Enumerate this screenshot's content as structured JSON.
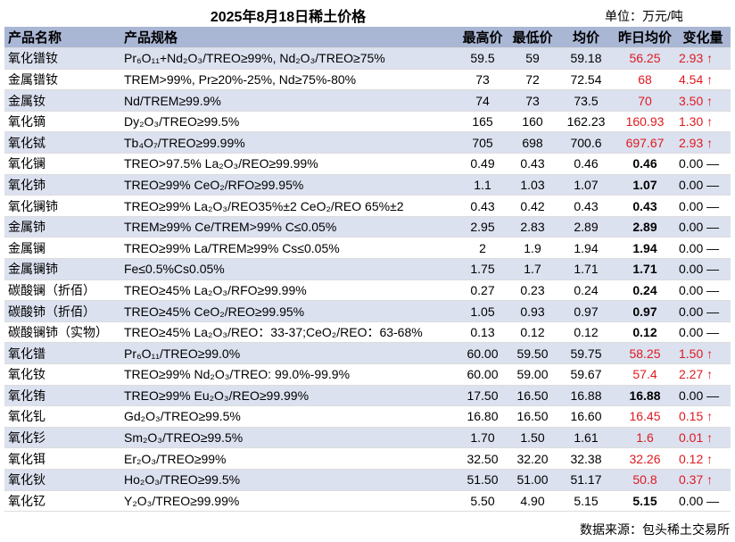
{
  "title": "2025年8月18日稀土价格",
  "unit": "单位：万元/吨",
  "headers": {
    "name": "产品名称",
    "spec": "产品规格",
    "high": "最高价",
    "low": "最低价",
    "avg": "均价",
    "yest": "昨日均价",
    "chg": "变化量"
  },
  "colors": {
    "header_bg": "#a9b6d4",
    "band_bg": "#dbe1ef",
    "up": "#e0191f"
  },
  "rows": [
    {
      "name": "氧化镨钕",
      "spec": "Pr₆O₁₁+Nd₂O₃/TREO≥99%, Nd₂O₃/TREO≥75%",
      "high": "59.5",
      "low": "59",
      "avg": "59.18",
      "yest": "56.25",
      "chg": "2.93 ↑",
      "up": true
    },
    {
      "name": "金属镨钕",
      "spec": "TREM>99%, Pr≥20%-25%, Nd≥75%-80%",
      "high": "73",
      "low": "72",
      "avg": "72.54",
      "yest": "68",
      "chg": "4.54 ↑",
      "up": true
    },
    {
      "name": "金属钕",
      "spec": "Nd/TREM≥99.9%",
      "high": "74",
      "low": "73",
      "avg": "73.5",
      "yest": "70",
      "chg": "3.50 ↑",
      "up": true
    },
    {
      "name": "氧化镝",
      "spec": "Dy₂O₃/TREO≥99.5%",
      "high": "165",
      "low": "160",
      "avg": "162.23",
      "yest": "160.93",
      "chg": "1.30 ↑",
      "up": true
    },
    {
      "name": "氧化铽",
      "spec": "Tb₄O₇/TREO≥99.99%",
      "high": "705",
      "low": "698",
      "avg": "700.6",
      "yest": "697.67",
      "chg": "2.93 ↑",
      "up": true
    },
    {
      "name": "氧化镧",
      "spec": "TREO>97.5% La₂O₃/REO≥99.99%",
      "high": "0.49",
      "low": "0.43",
      "avg": "0.46",
      "yest": "0.46",
      "chg": "0.00 —",
      "up": false
    },
    {
      "name": "氧化铈",
      "spec": "TREO≥99% CeO₂/RFO≥99.95%",
      "high": "1.1",
      "low": "1.03",
      "avg": "1.07",
      "yest": "1.07",
      "chg": "0.00 —",
      "up": false
    },
    {
      "name": "氧化镧铈",
      "spec": "TREO≥99% La₂O₃/REO35%±2 CeO₂/REO 65%±2",
      "high": "0.43",
      "low": "0.42",
      "avg": "0.43",
      "yest": "0.43",
      "chg": "0.00 —",
      "up": false
    },
    {
      "name": "金属铈",
      "spec": "TREM≥99% Ce/TREM>99% C≤0.05%",
      "high": "2.95",
      "low": "2.83",
      "avg": "2.89",
      "yest": "2.89",
      "chg": "0.00 —",
      "up": false
    },
    {
      "name": "金属镧",
      "spec": "TREO≥99% La/TREM≥99% Cs≤0.05%",
      "high": "2",
      "low": "1.9",
      "avg": "1.94",
      "yest": "1.94",
      "chg": "0.00 —",
      "up": false
    },
    {
      "name": "金属镧铈",
      "spec": "Fe≤0.5%Cs0.05%",
      "high": "1.75",
      "low": "1.7",
      "avg": "1.71",
      "yest": "1.71",
      "chg": "0.00 —",
      "up": false
    },
    {
      "name": "碳酸镧（折佰）",
      "spec": "TREO≥45% La₂O₃/RFO≥99.99%",
      "high": "0.27",
      "low": "0.23",
      "avg": "0.24",
      "yest": "0.24",
      "chg": "0.00 —",
      "up": false
    },
    {
      "name": "碳酸铈（折佰）",
      "spec": "TREO≥45% CeO₂/REO≥99.95%",
      "high": "1.05",
      "low": "0.93",
      "avg": "0.97",
      "yest": "0.97",
      "chg": "0.00 —",
      "up": false
    },
    {
      "name": "碳酸镧铈（实物）",
      "spec": "TREO≥45% La₂O₃/REO：33-37;CeO₂/REO：63-68%",
      "high": "0.13",
      "low": "0.12",
      "avg": "0.12",
      "yest": "0.12",
      "chg": "0.00 —",
      "up": false
    },
    {
      "name": "氧化镨",
      "spec": "Pr₆O₁₁/TREO≥99.0%",
      "high": "60.00",
      "low": "59.50",
      "avg": "59.75",
      "yest": "58.25",
      "chg": "1.50 ↑",
      "up": true
    },
    {
      "name": "氧化钕",
      "spec": "TREO≥99% Nd₂O₃/TREO: 99.0%-99.9%",
      "high": "60.00",
      "low": "59.00",
      "avg": "59.67",
      "yest": "57.4",
      "chg": "2.27 ↑",
      "up": true
    },
    {
      "name": "氧化铕",
      "spec": "TREO≥99% Eu₂O₃/REO≥99.99%",
      "high": "17.50",
      "low": "16.50",
      "avg": "16.88",
      "yest": "16.88",
      "chg": "0.00 —",
      "up": false
    },
    {
      "name": "氧化钆",
      "spec": "Gd₂O₃/TREO≥99.5%",
      "high": "16.80",
      "low": "16.50",
      "avg": "16.60",
      "yest": "16.45",
      "chg": "0.15 ↑",
      "up": true
    },
    {
      "name": "氧化钐",
      "spec": "Sm₂O₃/TREO≥99.5%",
      "high": "1.70",
      "low": "1.50",
      "avg": "1.61",
      "yest": "1.6",
      "chg": "0.01 ↑",
      "up": true
    },
    {
      "name": "氧化铒",
      "spec": "Er₂O₃/TREO≥99%",
      "high": "32.50",
      "low": "32.20",
      "avg": "32.38",
      "yest": "32.26",
      "chg": "0.12 ↑",
      "up": true
    },
    {
      "name": "氧化钬",
      "spec": "Ho₂O₃/TREO≥99.5%",
      "high": "51.50",
      "low": "51.00",
      "avg": "51.17",
      "yest": "50.8",
      "chg": "0.37 ↑",
      "up": true
    },
    {
      "name": "氧化钇",
      "spec": "Y₂O₃/TREO≥99.99%",
      "high": "5.50",
      "low": "4.90",
      "avg": "5.15",
      "yest": "5.15",
      "chg": "0.00 —",
      "up": false
    }
  ],
  "source": "数据来源：包头稀土交易所"
}
